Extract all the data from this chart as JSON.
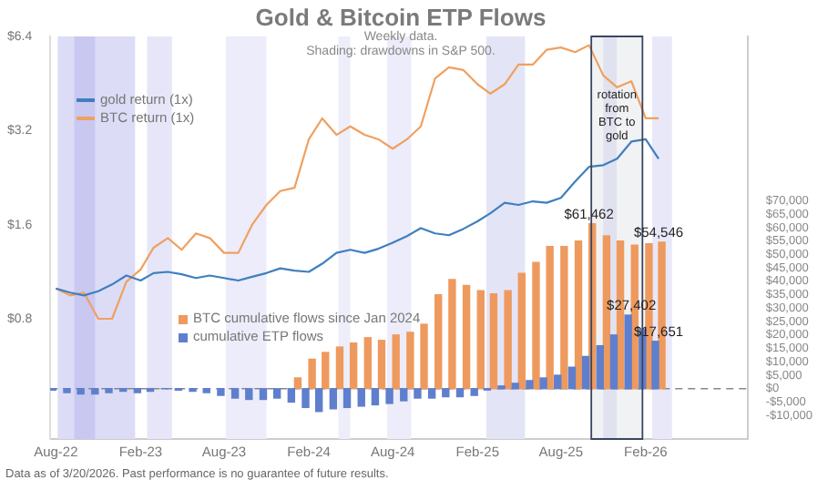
{
  "chart_data": {
    "type": "line",
    "title": "Gold & Bitcoin ETP Flows",
    "subtitle": "Weekly data.\nShading: drawdowns in S&P 500.",
    "x": [
      "2022-08",
      "2022-09",
      "2022-10",
      "2022-11",
      "2022-12",
      "2023-01",
      "2023-02",
      "2023-03",
      "2023-04",
      "2023-05",
      "2023-06",
      "2023-07",
      "2023-08",
      "2023-09",
      "2023-10",
      "2023-11",
      "2023-12",
      "2024-01",
      "2024-02",
      "2024-03",
      "2024-04",
      "2024-05",
      "2024-06",
      "2024-07",
      "2024-08",
      "2024-09",
      "2024-10",
      "2024-11",
      "2024-12",
      "2025-01",
      "2025-02",
      "2025-03",
      "2025-04",
      "2025-05",
      "2025-06",
      "2025-07",
      "2025-08",
      "2025-09",
      "2025-10",
      "2025-11",
      "2025-12",
      "2026-01",
      "2026-02",
      "2026-03"
    ],
    "series": [
      {
        "name": "gold return (1x)",
        "color": "#3f7fbf",
        "values": [
          1.0,
          0.97,
          0.95,
          0.98,
          1.03,
          1.1,
          1.06,
          1.12,
          1.13,
          1.11,
          1.08,
          1.1,
          1.08,
          1.06,
          1.09,
          1.12,
          1.16,
          1.14,
          1.13,
          1.2,
          1.3,
          1.33,
          1.3,
          1.34,
          1.4,
          1.47,
          1.56,
          1.5,
          1.48,
          1.55,
          1.64,
          1.74,
          1.88,
          1.85,
          1.9,
          1.88,
          1.95,
          2.2,
          2.45,
          2.48,
          2.6,
          2.95,
          3.0,
          2.6
        ]
      },
      {
        "name": "BTC return (1x)",
        "color": "#f0a060",
        "values": [
          1.0,
          0.95,
          0.97,
          0.8,
          0.8,
          1.05,
          1.15,
          1.35,
          1.45,
          1.33,
          1.5,
          1.45,
          1.3,
          1.3,
          1.6,
          1.85,
          2.05,
          2.1,
          3.0,
          3.5,
          3.1,
          3.3,
          3.1,
          3.0,
          2.8,
          3.0,
          3.3,
          4.7,
          5.1,
          5.0,
          4.5,
          4.2,
          4.5,
          5.2,
          5.2,
          5.8,
          5.9,
          5.7,
          6.0,
          4.8,
          4.4,
          4.6,
          3.5,
          3.5
        ]
      },
      {
        "name": "BTC cumulative flows since Jan 2024",
        "type": "bar",
        "axis": "y2",
        "color": "#ee9a5e",
        "values": [
          null,
          null,
          null,
          null,
          null,
          null,
          null,
          null,
          null,
          null,
          null,
          null,
          null,
          null,
          null,
          null,
          null,
          4000,
          11000,
          13500,
          15500,
          17000,
          19000,
          18000,
          20000,
          21000,
          24000,
          35000,
          40700,
          38500,
          36500,
          35300,
          36500,
          43000,
          47000,
          53000,
          53000,
          55000,
          61462,
          57000,
          55000,
          53500,
          54000,
          54546
        ],
        "value_labels": [
          null,
          null,
          null,
          null,
          null,
          null,
          null,
          null,
          null,
          null,
          null,
          null,
          null,
          null,
          null,
          null,
          null,
          null,
          null,
          null,
          null,
          null,
          null,
          null,
          null,
          null,
          null,
          null,
          null,
          null,
          null,
          null,
          null,
          null,
          null,
          null,
          null,
          null,
          "$61,462",
          null,
          null,
          null,
          null,
          "$54,546"
        ]
      },
      {
        "name": "cumulative ETP flows",
        "type": "bar",
        "axis": "y2",
        "color": "#5f7fcc",
        "values": [
          -500,
          -1500,
          -2000,
          -2000,
          -1500,
          -1000,
          -1500,
          -1000,
          0,
          -500,
          -1000,
          -1500,
          -2500,
          -3500,
          -4000,
          -4000,
          -3500,
          -5000,
          -7000,
          -8500,
          -7500,
          -7000,
          -6500,
          -6000,
          -5500,
          -4500,
          -3500,
          -3500,
          -3000,
          -3000,
          -2500,
          -500,
          1000,
          2000,
          3000,
          4000,
          5000,
          8000,
          12000,
          16000,
          20000,
          27402,
          22000,
          17651
        ],
        "value_labels": [
          null,
          null,
          null,
          null,
          null,
          null,
          null,
          null,
          null,
          null,
          null,
          null,
          null,
          null,
          null,
          null,
          null,
          null,
          null,
          null,
          null,
          null,
          null,
          null,
          null,
          null,
          null,
          null,
          null,
          null,
          null,
          null,
          null,
          null,
          null,
          null,
          null,
          null,
          null,
          null,
          null,
          "$27,402",
          null,
          "$17,651"
        ]
      }
    ],
    "xlim": [
      "2022-07-20",
      "2026-09-10"
    ],
    "xticks": [
      {
        "value": "2022-08",
        "label": "Aug-22"
      },
      {
        "value": "2023-02",
        "label": "Feb-23"
      },
      {
        "value": "2023-08",
        "label": "Aug-23"
      },
      {
        "value": "2024-02",
        "label": "Feb-24"
      },
      {
        "value": "2024-08",
        "label": "Aug-24"
      },
      {
        "value": "2025-02",
        "label": "Feb-25"
      },
      {
        "value": "2025-08",
        "label": "Aug-25"
      },
      {
        "value": "2026-02",
        "label": "Feb-26"
      }
    ],
    "log": "y",
    "ylim": [
      0.33,
      6.4
    ],
    "yticks": [
      {
        "value": 0.8,
        "label": "$0.8"
      },
      {
        "value": 1.6,
        "label": "$1.6"
      },
      {
        "value": 3.2,
        "label": "$3.2"
      },
      {
        "value": 6.4,
        "label": "$6.4"
      }
    ],
    "y2lim": [
      -18750,
      131250
    ],
    "y2ticks": [
      {
        "value": -10000,
        "label": "-$10,000"
      },
      {
        "value": -5000,
        "label": "-$5,000"
      },
      {
        "value": 0,
        "label": "$0"
      },
      {
        "value": 5000,
        "label": "$5,000"
      },
      {
        "value": 10000,
        "label": "$10,000"
      },
      {
        "value": 15000,
        "label": "$15,000"
      },
      {
        "value": 20000,
        "label": "$20,000"
      },
      {
        "value": 25000,
        "label": "$25,000"
      },
      {
        "value": 30000,
        "label": "$30,000"
      },
      {
        "value": 35000,
        "label": "$35,000"
      },
      {
        "value": 40000,
        "label": "$40,000"
      },
      {
        "value": 45000,
        "label": "$45,000"
      },
      {
        "value": 50000,
        "label": "$50,000"
      },
      {
        "value": 55000,
        "label": "$55,000"
      },
      {
        "value": 60000,
        "label": "$60,000"
      },
      {
        "value": 65000,
        "label": "$65,000"
      },
      {
        "value": 70000,
        "label": "$70,000"
      }
    ],
    "bands": [
      {
        "axis": "x",
        "from": "2022-08-05",
        "to": "2023-01-20",
        "color": "#dcdcf6"
      },
      {
        "axis": "x",
        "from": "2022-09-10",
        "to": "2022-10-25",
        "color": "#c8c8f0"
      },
      {
        "axis": "x",
        "from": "2023-02-15",
        "to": "2023-04-10",
        "color": "#e6e6f8"
      },
      {
        "axis": "x",
        "from": "2023-08-05",
        "to": "2023-11-01",
        "color": "#ececfa"
      },
      {
        "axis": "x",
        "from": "2024-04-05",
        "to": "2024-05-01",
        "color": "#eeeefa"
      },
      {
        "axis": "x",
        "from": "2024-07-20",
        "to": "2024-09-10",
        "color": "#ececfa"
      },
      {
        "axis": "x",
        "from": "2025-02-20",
        "to": "2025-05-15",
        "color": "#e4e4f7"
      },
      {
        "axis": "x",
        "from": "2025-11-01",
        "to": "2025-11-30",
        "color": "#eeeefa"
      },
      {
        "axis": "x",
        "from": "2026-02-15",
        "to": "2026-03-30",
        "color": "#e8e8f8"
      },
      {
        "axis": "x",
        "from": "2025-10-06",
        "to": "2026-01-25",
        "label": "rotation from BTC to gold",
        "color": "#3a4660"
      }
    ],
    "ref_lines": [
      {
        "axis": "y2",
        "value": 0,
        "color": "#888888",
        "line_style": "dashed"
      }
    ],
    "legend": "top left",
    "grid": false,
    "marker": "none",
    "annotations": [
      "Data as of 3/20/2026. Past performance is no guarantee of future results."
    ]
  }
}
